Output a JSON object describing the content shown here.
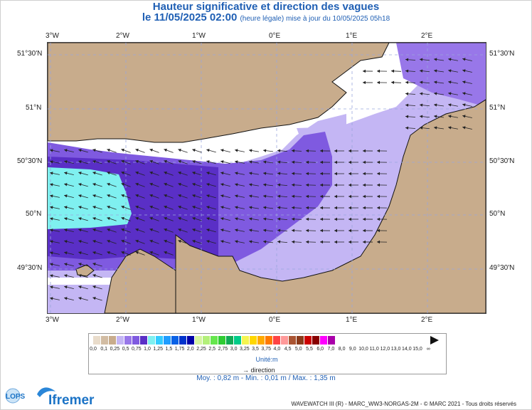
{
  "header": {
    "title": "Hauteur significative et direction des vagues",
    "date_main": "le 11/05/2025 02:00",
    "date_note": "(heure légale) mise à jour du 10/05/2025 05h18"
  },
  "map": {
    "lon_labels": [
      "3°W",
      "2°W",
      "1°W",
      "0°E",
      "1°E",
      "2°E"
    ],
    "lat_labels": [
      "51°30'N",
      "51°N",
      "50°30'N",
      "50°N",
      "49°30'N"
    ],
    "colors": {
      "land": "#c8ac8c",
      "grid": "#9aa6dd",
      "wave_light": "#c4b6f4",
      "wave_mid": "#9877e9",
      "wave_mid2": "#7f5ae0",
      "wave_dark": "#5a2fc6",
      "wave_cyan": "#7ff0f0",
      "arrow": "#222222"
    }
  },
  "legend": {
    "labels": [
      "0,0",
      "0,1",
      "0,25",
      "0,5",
      "0,75",
      "1,0",
      "1,25",
      "1,5",
      "1,75",
      "2,0",
      "2,25",
      "2,5",
      "2,75",
      "3,0",
      "3,25",
      "3,5",
      "3,75",
      "4,0",
      "4,5",
      "5,0",
      "5,5",
      "6,0",
      "7,0",
      "8,0",
      "9,0",
      "10,0",
      "11,0",
      "12,0",
      "13,0",
      "14,0",
      "15,0",
      "∞"
    ],
    "colors": [
      "#e9dccb",
      "#d2bca3",
      "#c8ac8c",
      "#c4b6f4",
      "#9877e9",
      "#7f5ae0",
      "#5a2fc6",
      "#7ff0f0",
      "#33ccff",
      "#1f9dff",
      "#0a62e6",
      "#0033cc",
      "#0000a8",
      "#d6f5a0",
      "#b3f07a",
      "#66e64d",
      "#2fcc33",
      "#11aa55",
      "#00cc88",
      "#f5f550",
      "#ffd700",
      "#ffaa00",
      "#ff7a00",
      "#ff4444",
      "#ff9999",
      "#aa5533",
      "#8b3a1a",
      "#cc0000",
      "#880000",
      "#ff00ff",
      "#aa00aa"
    ],
    "unit": "Unité:m",
    "direction_label": "direction"
  },
  "stats": "Moy. : 0,82 m   -   Min. : 0,01 m / Max. : 1,35 m",
  "footer": "WAVEWATCH III (R) - MARC_WW3-NORGAS-2M - © MARC 2021 - Tous droits réservés",
  "brand": {
    "lops": "LOPS",
    "ifremer": "Ifremer"
  }
}
